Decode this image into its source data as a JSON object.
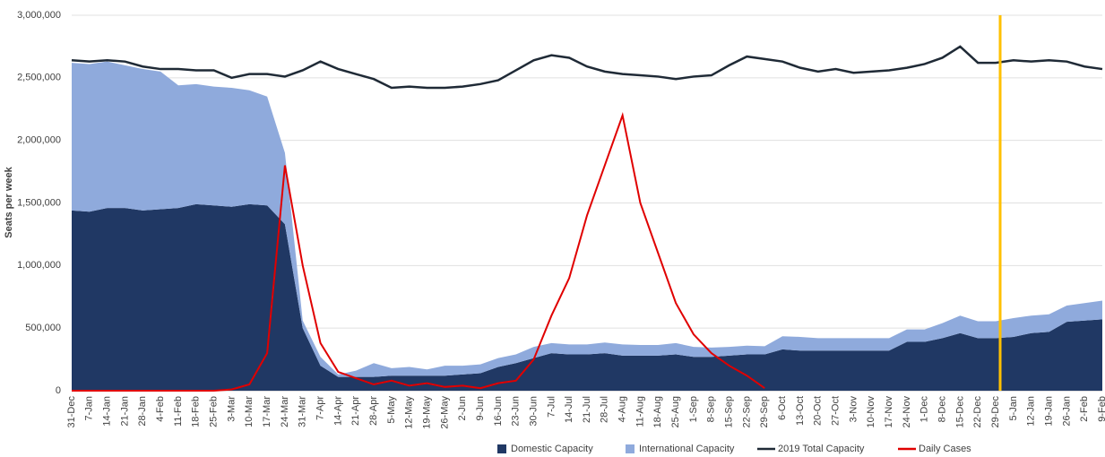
{
  "chart_data": {
    "type": "stacked_area_line",
    "y_label": "Seats per week",
    "categories": [
      "31-Dec",
      "7-Jan",
      "14-Jan",
      "21-Jan",
      "28-Jan",
      "4-Feb",
      "11-Feb",
      "18-Feb",
      "25-Feb",
      "3-Mar",
      "10-Mar",
      "17-Mar",
      "24-Mar",
      "31-Mar",
      "7-Apr",
      "14-Apr",
      "21-Apr",
      "28-Apr",
      "5-May",
      "12-May",
      "19-May",
      "26-May",
      "2-Jun",
      "9-Jun",
      "16-Jun",
      "23-Jun",
      "30-Jun",
      "7-Jul",
      "14-Jul",
      "21-Jul",
      "28-Jul",
      "4-Aug",
      "11-Aug",
      "18-Aug",
      "25-Aug",
      "1-Sep",
      "8-Sep",
      "15-Sep",
      "22-Sep",
      "29-Sep",
      "6-Oct",
      "13-Oct",
      "20-Oct",
      "27-Oct",
      "3-Nov",
      "10-Nov",
      "17-Nov",
      "24-Nov",
      "1-Dec",
      "8-Dec",
      "15-Dec",
      "22-Dec",
      "29-Dec",
      "5-Jan",
      "12-Jan",
      "19-Jan",
      "26-Jan",
      "2-Feb",
      "9-Feb"
    ],
    "series": [
      {
        "name": "Domestic Capacity",
        "color": "#203864",
        "kind": "area",
        "values": [
          1440000,
          1430000,
          1460000,
          1460000,
          1440000,
          1450000,
          1460000,
          1490000,
          1480000,
          1470000,
          1490000,
          1480000,
          1330000,
          500000,
          200000,
          110000,
          110000,
          110000,
          120000,
          120000,
          120000,
          120000,
          130000,
          140000,
          190000,
          220000,
          260000,
          300000,
          290000,
          290000,
          300000,
          280000,
          280000,
          280000,
          290000,
          270000,
          270000,
          280000,
          290000,
          290000,
          330000,
          320000,
          320000,
          320000,
          320000,
          320000,
          320000,
          390000,
          390000,
          420000,
          460000,
          420000,
          420000,
          430000,
          460000,
          470000,
          550000,
          560000,
          570000
        ]
      },
      {
        "name": "International Capacity",
        "color": "#8faadc",
        "kind": "area",
        "values": [
          1180000,
          1180000,
          1170000,
          1140000,
          1130000,
          1100000,
          980000,
          960000,
          950000,
          950000,
          910000,
          870000,
          570000,
          60000,
          70000,
          20000,
          50000,
          110000,
          60000,
          70000,
          50000,
          80000,
          70000,
          70000,
          70000,
          70000,
          90000,
          80000,
          80000,
          80000,
          85000,
          90000,
          85000,
          85000,
          90000,
          80000,
          75000,
          70000,
          70000,
          65000,
          105000,
          110000,
          100000,
          100000,
          100000,
          100000,
          100000,
          100000,
          100000,
          120000,
          140000,
          135000,
          135000,
          150000,
          140000,
          140000,
          130000,
          140000,
          150000
        ]
      },
      {
        "name": "2019 Total Capacity",
        "color": "#1f2a36",
        "kind": "line",
        "values": [
          2640000,
          2630000,
          2640000,
          2630000,
          2590000,
          2570000,
          2570000,
          2560000,
          2560000,
          2500000,
          2530000,
          2530000,
          2510000,
          2560000,
          2630000,
          2570000,
          2530000,
          2490000,
          2420000,
          2430000,
          2420000,
          2420000,
          2430000,
          2450000,
          2480000,
          2560000,
          2640000,
          2680000,
          2660000,
          2590000,
          2550000,
          2530000,
          2520000,
          2510000,
          2490000,
          2510000,
          2520000,
          2600000,
          2670000,
          2650000,
          2630000,
          2580000,
          2550000,
          2570000,
          2540000,
          2550000,
          2560000,
          2580000,
          2610000,
          2660000,
          2750000,
          2620000,
          2620000,
          2640000,
          2630000,
          2640000,
          2630000,
          2590000,
          2570000
        ]
      },
      {
        "name": "Daily Cases",
        "color": "#e00000",
        "kind": "line",
        "values": [
          0,
          0,
          0,
          0,
          0,
          0,
          0,
          0,
          0,
          10000,
          50000,
          300000,
          1800000,
          1000000,
          380000,
          150000,
          100000,
          50000,
          80000,
          40000,
          60000,
          30000,
          40000,
          20000,
          60000,
          80000,
          250000,
          600000,
          900000,
          1400000,
          1800000,
          2200000,
          1500000,
          1100000,
          700000,
          450000,
          300000,
          200000,
          120000,
          20000,
          null,
          null,
          null,
          null,
          null,
          null,
          null,
          null,
          null,
          null,
          null,
          null,
          null,
          null,
          null,
          null,
          null,
          null,
          null
        ]
      }
    ],
    "ylim": [
      0,
      3000000
    ],
    "yticks": [
      0,
      {
        "value": 500000,
        "label": "500,000"
      },
      {
        "value": 1000000,
        "label": "1,000,000"
      },
      {
        "value": 1500000,
        "label": "1,500,000"
      },
      {
        "value": 2000000,
        "label": "2,000,000"
      },
      {
        "value": 2500000,
        "label": "2,500,000"
      },
      {
        "value": 3000000,
        "label": "3,000,000"
      }
    ],
    "grid": true,
    "legend": "bottom"
  }
}
